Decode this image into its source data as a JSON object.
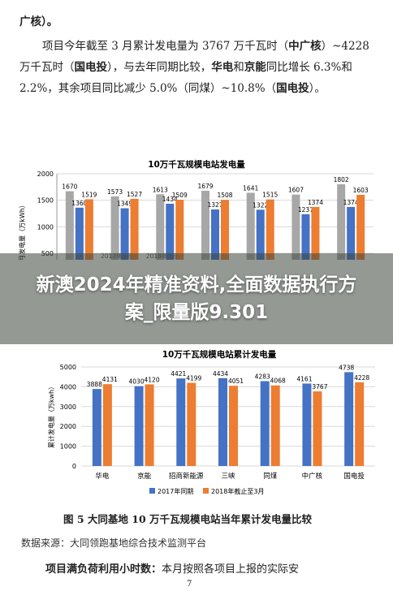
{
  "text": {
    "line1": "广核）。",
    "para_a": "项目今年截至 3 月累计发电量为 3767 万千瓦时（",
    "para_b": "中广",
    "para_c": "核",
    "para_d": "）~4228 万千瓦时（",
    "para_e": "国电投",
    "para_f": "），与去年同期比较，",
    "para_g": "华电",
    "para_h": "和",
    "para_i": "京能",
    "para_j": "同比增长 6.3%和 2.2%，其余项目同比减少 5.0%（同煤）",
    "para_k": "~10.8%（",
    "para_l": "国电投",
    "para_m": "）。"
  },
  "banner": {
    "text": "新澳2024年精准资料,全面数据执行方案_限量版9.301"
  },
  "chart1": {
    "title": "10万千瓦规模电站发电量",
    "ylabel": "月发电量（万kWh）",
    "yticks": [
      "2000",
      "1500",
      "1000",
      "500"
    ],
    "visible_xlabels": [
      "2017年3月",
      "2018年3月"
    ]
  },
  "chart2": {
    "title": "10万千瓦规模电站累计发电量",
    "ylabel": "累计发电量（万kwh）",
    "yticks": [
      "5000",
      "4000",
      "3000",
      "2000",
      "1000",
      "0"
    ],
    "legend": [
      "2017年同期",
      "2018年截止至3月"
    ]
  },
  "chart_data": [
    {
      "type": "bar",
      "title": "10万千瓦规模电站发电量",
      "ylabel": "月发电量（万kWh）",
      "ylim": [
        500,
        2000
      ],
      "series": [
        {
          "name": "",
          "values": [
            1670,
            1573,
            1613,
            1679,
            1641,
            1607,
            1802
          ]
        },
        {
          "name": "",
          "values": [
            1360,
            1349,
            1434,
            1327,
            1322,
            1237,
            1374
          ]
        },
        {
          "name": "",
          "values": [
            1519,
            1527,
            1509,
            1508,
            1515,
            1374,
            1603
          ]
        }
      ],
      "colors": [
        "#a7a7a7",
        "#4472c4",
        "#ed7d31"
      ]
    },
    {
      "type": "bar",
      "title": "10万千瓦规模电站累计发电量",
      "ylabel": "累计发电量（万kwh）",
      "ylim": [
        0,
        5000
      ],
      "categories": [
        "华电",
        "京能",
        "招商新能源",
        "三峡",
        "同煤",
        "中广核",
        "国电投"
      ],
      "series": [
        {
          "name": "2017年同期",
          "values": [
            3888,
            4030,
            4421,
            4434,
            4283,
            4161,
            4738
          ]
        },
        {
          "name": "2018年截止至3月",
          "values": [
            4131,
            4120,
            4199,
            4051,
            4068,
            3767,
            4228
          ]
        }
      ],
      "colors": [
        "#4472c4",
        "#ed7d31"
      ]
    }
  ],
  "caption": "图 5    大同基地 10 万千瓦规模电站当年累计发电量比较",
  "source": "数据来源：大同领跑基地综合技术监测平台",
  "last_bold": "项目满负荷利用小时数：",
  "last_rest": "本月按照各项目上报的实际安",
  "page_number": "7"
}
